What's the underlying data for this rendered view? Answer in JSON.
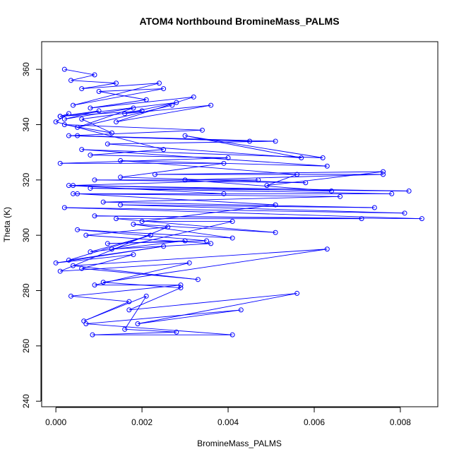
{
  "chart_data": {
    "type": "line",
    "title": "ATOM4 Northbound BromineMass_PALMS",
    "xlabel": "BromineMass_PALMS",
    "ylabel": "Theta (K)",
    "xlim": [
      -0.00033,
      0.00887
    ],
    "ylim": [
      238,
      370
    ],
    "x_ticks": [
      "0.000",
      "0.002",
      "0.004",
      "0.006",
      "0.008"
    ],
    "x_tick_values": [
      0,
      0.002,
      0.004,
      0.006,
      0.008
    ],
    "y_ticks": [
      "240",
      "260",
      "280",
      "300",
      "320",
      "340",
      "360"
    ],
    "y_tick_values": [
      240,
      260,
      280,
      300,
      320,
      340,
      360
    ],
    "grid": false,
    "legend": "none",
    "marker": "open-circle",
    "color": "#0000ff",
    "series": [
      {
        "x": [
          0.0002,
          0.0009,
          0.00035,
          0.0014,
          0.0006,
          0.0024,
          0.0004,
          0.0025,
          0.001,
          0.0021,
          0.0008,
          0.0032,
          0.0014,
          0.0036,
          0.0016,
          0.0028,
          0.0001,
          0.002,
          0.0006,
          0.0013,
          0.0002,
          0.0034,
          0.0003,
          0.0045,
          0.0005,
          0.0051,
          0.0012,
          0.0057,
          0.003,
          0.0062,
          0.0006,
          0.0063,
          0.0015,
          0.0056,
          0.0049,
          0.0076,
          0.0023,
          0.0076,
          0.003,
          0.0064,
          0.0004,
          0.0082,
          0.0008,
          0.0078,
          0.0004,
          0.0066,
          0.0011,
          0.0074,
          0.0015,
          0.0081,
          0.0002,
          0.0085,
          0.0009,
          0.0071,
          0.0014,
          0.0051,
          0.0018,
          0.0041,
          0.0005,
          0.0035,
          0.0012,
          0.003,
          0.0008,
          0.0022,
          0.0003,
          0.0025,
          0.0,
          0.0018,
          0.0006,
          0.0033,
          0.0004,
          0.0063,
          0.0011,
          0.0029,
          0.0017,
          0.0056,
          0.0019,
          0.0043,
          0.0007,
          0.0041,
          0.00085,
          0.0028,
          0.0016,
          0.0021,
          0.00065,
          0.0017,
          0.00035,
          0.0029,
          0.0009,
          0.0031,
          0.0001,
          0.0026,
          0.0007,
          0.0036,
          0.0013,
          0.0041,
          0.002,
          0.0051,
          0.0005,
          0.0039,
          0.0003,
          0.0047,
          0.0009,
          0.0058,
          0.0015,
          0.0039,
          0.0001,
          0.004,
          0.0008,
          0.0025,
          0.0,
          0.0003,
          0.0001,
          0.001,
          0.0002,
          0.0018,
          0.0005,
          0.0027
        ],
        "y": [
          360,
          358,
          356,
          355,
          353,
          355,
          347,
          353,
          352,
          349,
          346,
          350,
          341,
          347,
          344,
          348,
          343,
          345,
          342,
          337,
          340,
          338,
          336,
          334,
          336,
          334,
          333,
          328,
          336,
          328,
          331,
          325,
          327,
          322,
          318,
          323,
          322,
          322,
          320,
          316,
          318,
          316,
          317,
          315,
          315,
          314,
          312,
          310,
          311,
          308,
          310,
          306,
          307,
          306,
          306,
          301,
          304,
          299,
          302,
          298,
          297,
          298,
          294,
          300,
          291,
          296,
          290,
          293,
          288,
          284,
          289,
          295,
          283,
          281,
          273,
          279,
          268,
          273,
          268,
          264,
          264,
          265,
          266,
          278,
          269,
          276,
          278,
          282,
          282,
          290,
          287,
          303,
          300,
          297,
          295,
          305,
          305,
          311,
          315,
          315,
          318,
          320,
          320,
          319,
          321,
          326,
          326,
          328,
          329,
          331,
          341,
          344,
          343,
          345,
          342,
          346,
          339,
          347
        ]
      }
    ]
  }
}
